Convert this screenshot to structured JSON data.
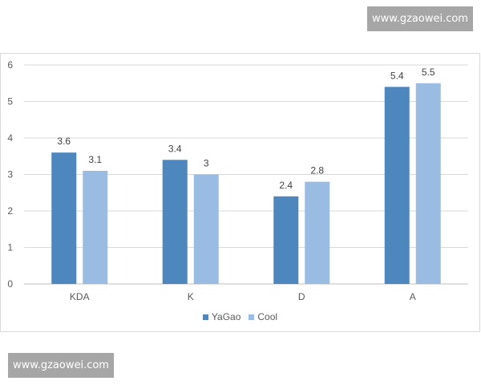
{
  "watermark_top": "www.gzaowei.com",
  "watermark_bottom": "www.gzaowei.com",
  "chart_data": {
    "type": "bar",
    "categories": [
      "KDA",
      "K",
      "D",
      "A"
    ],
    "series": [
      {
        "name": "YaGao",
        "values": [
          3.6,
          3.4,
          2.4,
          5.4
        ],
        "color": "#4e86be"
      },
      {
        "name": "Cool",
        "values": [
          3.1,
          3,
          2.8,
          5.5
        ],
        "color": "#9bbce2"
      }
    ],
    "title": "",
    "xlabel": "",
    "ylabel": "",
    "ylim": [
      0,
      6
    ],
    "yticks": [
      "0",
      "1",
      "2",
      "3",
      "4",
      "5",
      "6"
    ],
    "grid": true,
    "legend_position": "bottom",
    "data_labels": true
  }
}
